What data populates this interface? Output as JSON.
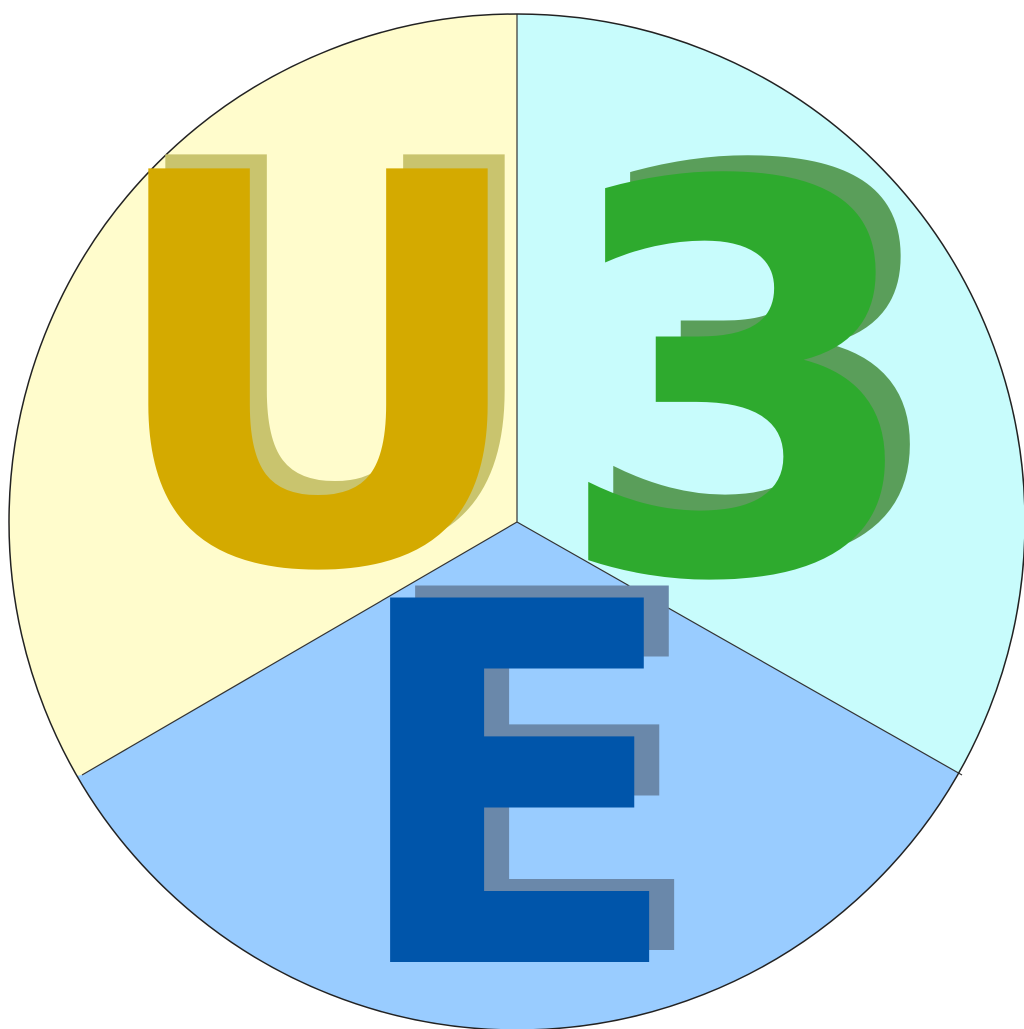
{
  "logo": {
    "letters": [
      "U",
      "3",
      "E"
    ]
  }
}
